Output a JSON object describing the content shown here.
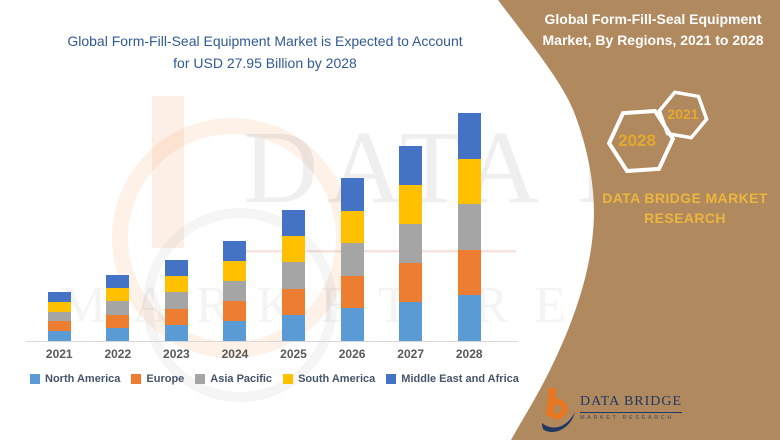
{
  "chart": {
    "title_line1": "Global Form-Fill-Seal Equipment Market is Expected to Account",
    "title_line2": "for USD 27.95 Billion by 2028"
  },
  "chart_data": {
    "type": "bar",
    "stacked": true,
    "title": "Global Form-Fill-Seal Equipment Market, By Regions, 2021 to 2028",
    "unit": "USD Billion (values estimated from bar heights; 2028 total given as 27.95)",
    "categories": [
      "2021",
      "2022",
      "2023",
      "2024",
      "2025",
      "2026",
      "2027",
      "2028"
    ],
    "series": [
      {
        "name": "North America",
        "color": "#5B9BD5",
        "values": [
          1.2,
          1.62,
          1.99,
          2.45,
          3.21,
          4.0,
          4.78,
          5.59
        ]
      },
      {
        "name": "Europe",
        "color": "#ED7D31",
        "values": [
          1.2,
          1.62,
          1.99,
          2.45,
          3.21,
          4.0,
          4.78,
          5.59
        ]
      },
      {
        "name": "Asia Pacific",
        "color": "#A5A5A5",
        "values": [
          1.2,
          1.62,
          1.99,
          2.45,
          3.21,
          4.0,
          4.78,
          5.59
        ]
      },
      {
        "name": "South America",
        "color": "#FFC000",
        "values": [
          1.2,
          1.62,
          1.99,
          2.45,
          3.21,
          4.0,
          4.78,
          5.59
        ]
      },
      {
        "name": "Middle East and Africa",
        "color": "#4472C4",
        "values": [
          1.2,
          1.62,
          1.99,
          2.45,
          3.21,
          4.0,
          4.78,
          5.59
        ]
      }
    ],
    "totals": [
      6.0,
      8.1,
      9.95,
      12.25,
      16.05,
      20.0,
      23.9,
      27.95
    ],
    "y_axis_visible": false,
    "gridlines": false,
    "legend_position": "bottom"
  },
  "panel": {
    "title_line1": "Global Form-Fill-Seal Equipment",
    "title_line2": "Market, By Regions, 2021 to 2028",
    "hexagon_start_year": "2021",
    "hexagon_end_year": "2028",
    "brand_line1": "DATA BRIDGE MARKET",
    "brand_line2": "RESEARCH",
    "colors": {
      "background": "#B1895F",
      "gold": "#EAB63E",
      "title_text": "#FFFFFF"
    }
  },
  "logo": {
    "name": "DATA BRIDGE",
    "subtitle": "MARKET RESEARCH",
    "colors": {
      "orange": "#E87722",
      "navy": "#1F3864"
    }
  },
  "watermark": {
    "line1": "DATA BRIDGE",
    "line2": "MARKET RESEARCH"
  }
}
